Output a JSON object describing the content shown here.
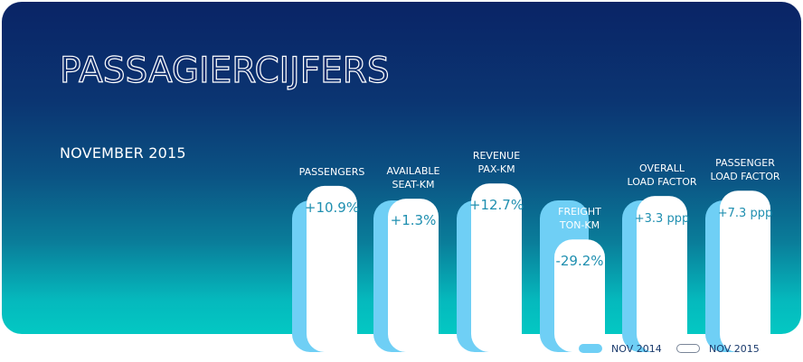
{
  "title": "PASSAGIERCIJFERS",
  "subtitle": "NOVEMBER 2015",
  "chart_data": {
    "type": "bar",
    "categories": [
      {
        "line1": "PASSENGERS",
        "line2": ""
      },
      {
        "line1": "AVAILABLE",
        "line2": "SEAT-KM"
      },
      {
        "line1": "REVENUE",
        "line2": "PAX-KM"
      },
      {
        "line1": "FREIGHT",
        "line2": "TON-KM"
      },
      {
        "line1": "OVERALL",
        "line2": "LOAD FACTOR"
      },
      {
        "line1": "PASSENGER",
        "line2": "LOAD FACTOR"
      }
    ],
    "series": [
      {
        "name": "NOV 2014",
        "values": [
          1,
          1,
          1,
          1,
          1,
          1
        ],
        "color": "#6fcff5"
      },
      {
        "name": "NOV 2015",
        "values": [
          1.109,
          1.013,
          1.127,
          0.708,
          1.033,
          1.073
        ],
        "color": "#ffffff"
      }
    ],
    "change_labels": [
      "+10.9%",
      "+1.3%",
      "+12.7%",
      "-29.2%",
      "+3.3 ppp",
      "+7.3 ppp"
    ],
    "label_color": "#1f8fb0",
    "legend_position": "bottom-right"
  }
}
